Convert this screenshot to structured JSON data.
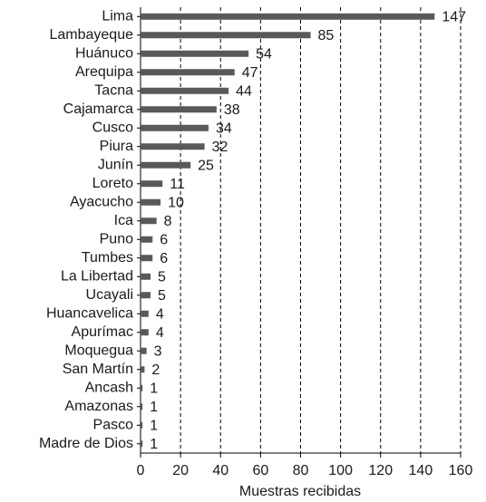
{
  "chart_data": {
    "type": "bar",
    "orientation": "horizontal",
    "x_label": "Muestras recibidas",
    "categories": [
      "Lima",
      "Lambayeque",
      "Huánuco",
      "Arequipa",
      "Tacna",
      "Cajamarca",
      "Cusco",
      "Piura",
      "Junín",
      "Loreto",
      "Ayacucho",
      "Ica",
      "Puno",
      "Tumbes",
      "La Libertad",
      "Ucayali",
      "Huancavelica",
      "Apurímac",
      "Moquegua",
      "San Martín",
      "Ancash",
      "Amazonas",
      "Pasco",
      "Madre de Dios"
    ],
    "values": [
      147,
      85,
      54,
      47,
      44,
      38,
      34,
      32,
      25,
      11,
      10,
      8,
      6,
      6,
      5,
      5,
      4,
      4,
      3,
      2,
      1,
      1,
      1,
      1
    ],
    "color": "#595959",
    "xlim": [
      0,
      160
    ],
    "xticks": [
      0,
      20,
      40,
      60,
      80,
      100,
      120,
      140,
      160
    ],
    "grid": true
  }
}
